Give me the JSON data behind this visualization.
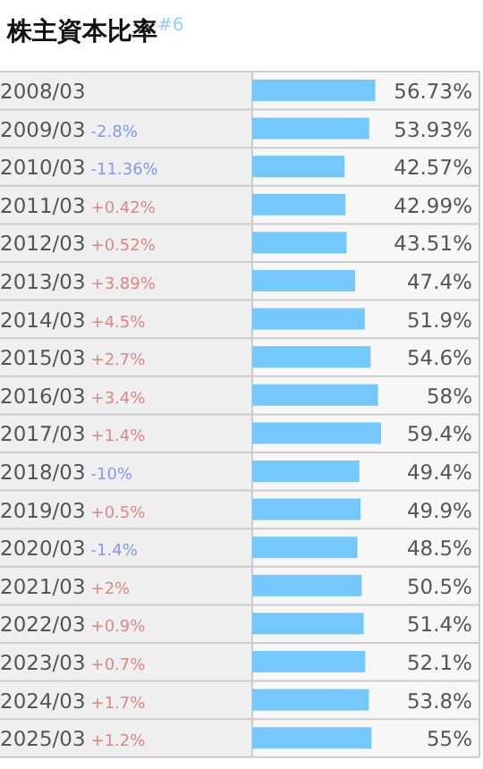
{
  "chart_data": {
    "type": "bar",
    "orientation": "horizontal",
    "title": "株主資本比率$^{#6}$",
    "color": "#74c8fb",
    "categories": [
      "2008/03",
      "2009/03 -2.8%",
      "2010/03 -11.36%",
      "2011/03 +0.42%",
      "2012/03 +0.52%",
      "2013/03 +3.89%",
      "2014/03 +4.5%",
      "2015/03 +2.7%",
      "2016/03 +3.4%",
      "2017/03 +1.4%",
      "2018/03 -10%",
      "2019/03 +0.5%",
      "2020/03 -1.4%",
      "2021/03 +2%",
      "2022/03 +0.9%",
      "2023/03 +0.7%",
      "2024/03 +1.7%",
      "2025/03 +1.2%"
    ],
    "values": [
      56.73,
      53.93,
      42.57,
      42.99,
      43.51,
      47.4,
      51.9,
      54.6,
      58,
      59.4,
      49.4,
      49.9,
      48.5,
      50.5,
      51.4,
      52.1,
      53.8,
      55
    ],
    "value_labels": [
      "56.73%",
      "53.93%",
      "42.57%",
      "42.99%",
      "43.51%",
      "47.4%",
      "51.9%",
      "54.6%",
      "58%",
      "59.4%",
      "49.4%",
      "49.9%",
      "48.5%",
      "50.5%",
      "51.4%",
      "52.1%",
      "53.8%",
      "55%"
    ]
  }
}
